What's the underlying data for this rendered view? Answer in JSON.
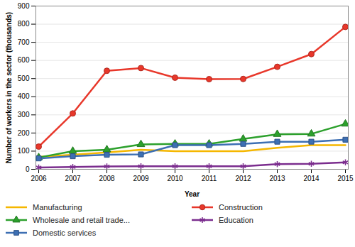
{
  "chart_data": {
    "type": "line",
    "x_label": "Year",
    "y_label": "Number of workers in the sector (thousands)",
    "x": [
      2006,
      2007,
      2008,
      2009,
      2010,
      2011,
      2012,
      2013,
      2014,
      2015
    ],
    "xticks": [
      2006,
      2007,
      2008,
      2009,
      2010,
      2011,
      2012,
      2013,
      2014,
      2015
    ],
    "ylim": [
      0,
      900
    ],
    "yticks": [
      0,
      100,
      200,
      300,
      400,
      500,
      600,
      700,
      800,
      900
    ],
    "grid": true,
    "legend": "bottom",
    "series": [
      {
        "name": "Manufacturing",
        "color": "#f5b700",
        "marker": "none",
        "values": [
          68,
          80,
          93,
          108,
          100,
          100,
          100,
          118,
          133,
          133
        ]
      },
      {
        "name": "Construction",
        "color": "#e8372a",
        "marker": "circle",
        "values": [
          125,
          308,
          543,
          558,
          505,
          497,
          498,
          565,
          635,
          785
        ]
      },
      {
        "name": "Wholesale and retail trade...",
        "color": "#2ca02c",
        "marker": "triangle",
        "values": [
          65,
          100,
          108,
          137,
          140,
          140,
          167,
          193,
          195,
          250
        ]
      },
      {
        "name": "Education",
        "color": "#7b2d8e",
        "marker": "asterisk",
        "values": [
          10,
          13,
          16,
          17,
          17,
          17,
          17,
          28,
          30,
          38
        ]
      },
      {
        "name": "Domestic services",
        "color": "#3d6fb3",
        "marker": "square",
        "values": [
          60,
          72,
          80,
          82,
          133,
          133,
          140,
          152,
          152,
          163
        ]
      }
    ]
  }
}
